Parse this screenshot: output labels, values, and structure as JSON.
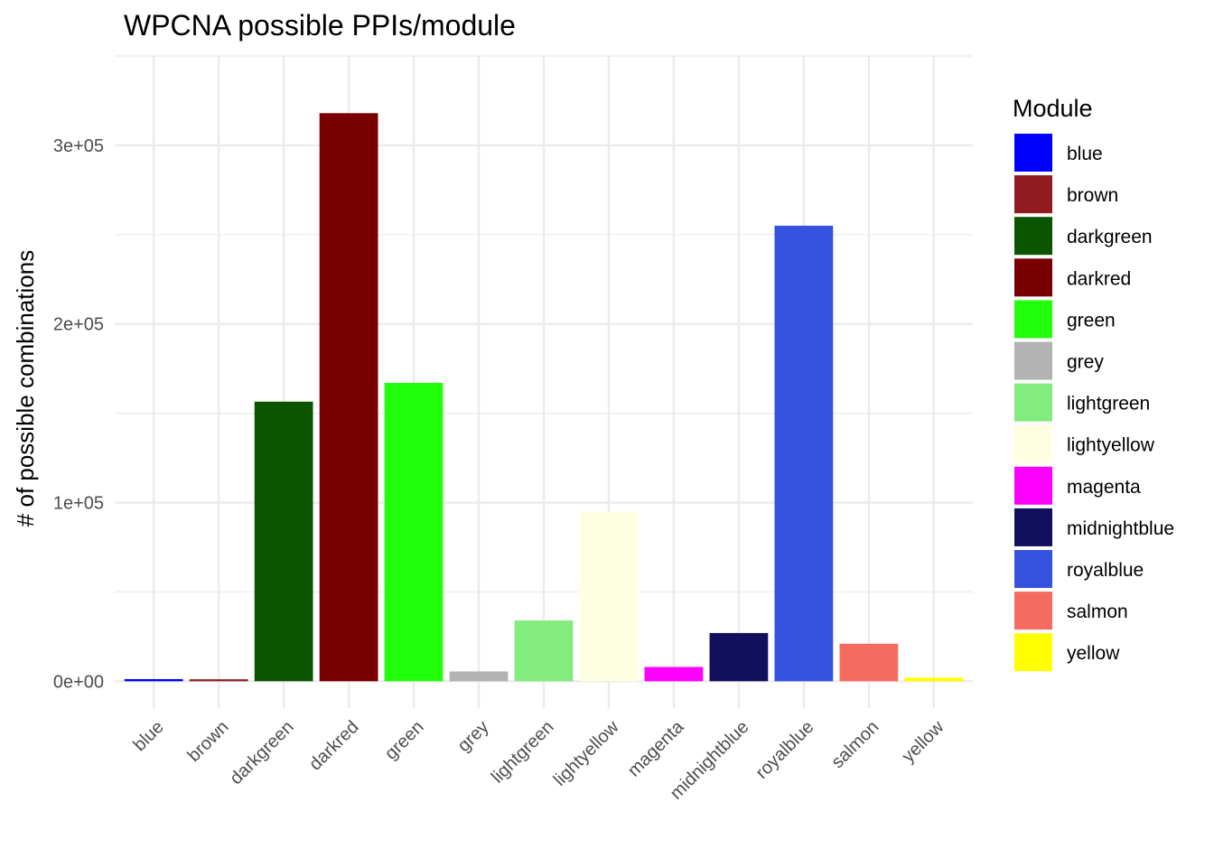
{
  "chart_data": {
    "type": "bar",
    "title": "WPCNA possible PPIs/module",
    "xlabel": "",
    "ylabel": "# of possible combinations",
    "ylim": [
      -15000,
      350000
    ],
    "yticks": [
      0,
      100000,
      200000,
      300000
    ],
    "ytick_labels": [
      "0e+00",
      "1e+05",
      "2e+05",
      "3e+05"
    ],
    "categories": [
      "blue",
      "brown",
      "darkgreen",
      "darkred",
      "green",
      "grey",
      "lightgreen",
      "lightyellow",
      "magenta",
      "midnightblue",
      "royalblue",
      "salmon",
      "yellow"
    ],
    "values": [
      1200,
      1100,
      156500,
      318000,
      167000,
      5500,
      34000,
      95000,
      8000,
      27000,
      255000,
      21000,
      2000
    ],
    "colors": [
      "#0000FF",
      "#921B22",
      "#0B5500",
      "#790000",
      "#22FF0B",
      "#B3B3B3",
      "#82EC7E",
      "#FEFEE0",
      "#FF00FF",
      "#12105D",
      "#3452DE",
      "#F66B60",
      "#FFFF00"
    ],
    "grid": true,
    "legend": {
      "title": "Module",
      "placement": "right"
    }
  }
}
